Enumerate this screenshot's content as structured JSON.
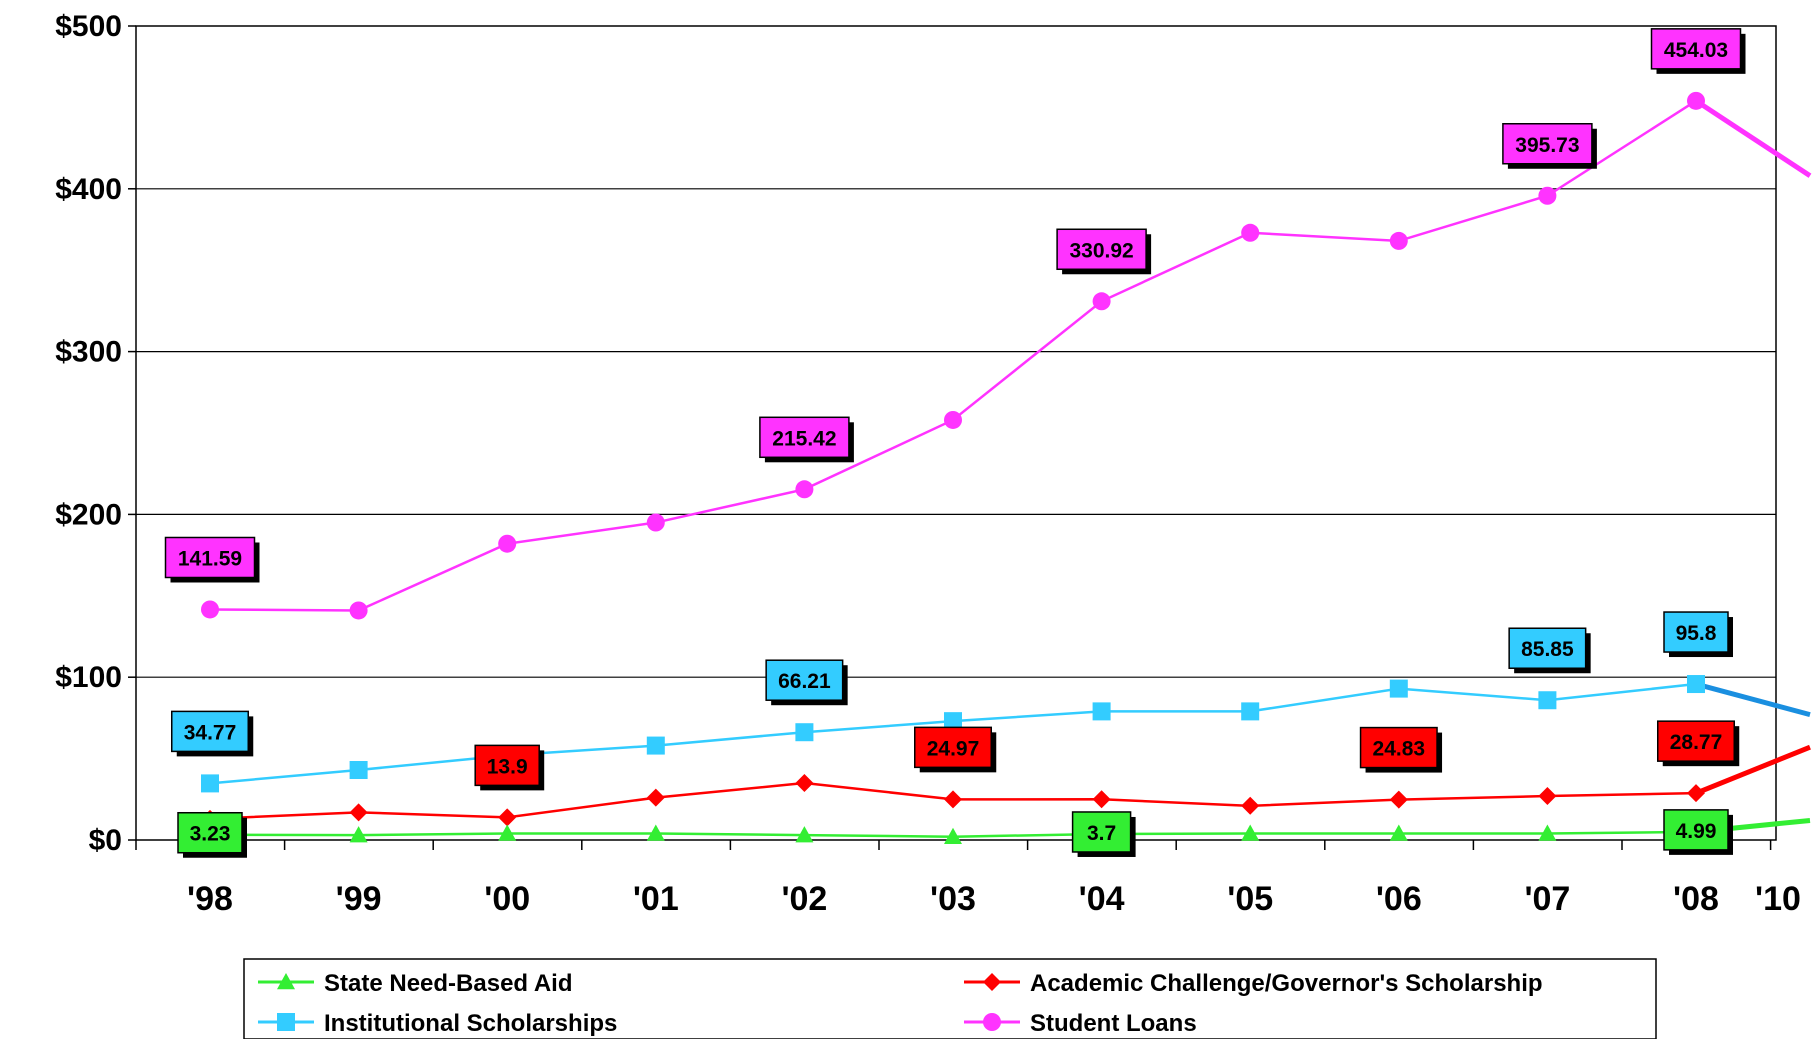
{
  "chart_data": {
    "type": "line",
    "title": "",
    "xlabel": "",
    "ylabel": "",
    "categories": [
      "'98",
      "'99",
      "'00",
      "'01",
      "'02",
      "'03",
      "'04",
      "'05",
      "'06",
      "'07",
      "'08"
    ],
    "trailing_tick": "'10",
    "ylim": [
      0,
      500
    ],
    "yticks": [
      {
        "value": 0,
        "label": "$0"
      },
      {
        "value": 100,
        "label": "$100"
      },
      {
        "value": 200,
        "label": "$200"
      },
      {
        "value": 300,
        "label": "$300"
      },
      {
        "value": 400,
        "label": "$400"
      },
      {
        "value": 500,
        "label": "$500"
      }
    ],
    "grid": true,
    "legend_position": "bottom",
    "series": [
      {
        "key": "student-loans",
        "name": "Student Loans",
        "color": "#ff33ff",
        "marker": "circle",
        "values": [
          141.59,
          141,
          182,
          195,
          215.42,
          258,
          330.92,
          373,
          368,
          395.73,
          454.03
        ],
        "projection": 408,
        "labels": [
          {
            "index": 0,
            "text": "141.59"
          },
          {
            "index": 4,
            "text": "215.42"
          },
          {
            "index": 6,
            "text": "330.92"
          },
          {
            "index": 9,
            "text": "395.73"
          },
          {
            "index": 10,
            "text": "454.03"
          }
        ]
      },
      {
        "key": "institutional-scholarships",
        "name": "Institutional Scholarships",
        "color": "#33ccff",
        "projection_color": "#1a8fe0",
        "marker": "square",
        "values": [
          34.77,
          43,
          52,
          58,
          66.21,
          73,
          79,
          79,
          93,
          85.85,
          95.8
        ],
        "projection": 77,
        "labels": [
          {
            "index": 0,
            "text": "34.77"
          },
          {
            "index": 4,
            "text": "66.21"
          },
          {
            "index": 9,
            "text": "85.85"
          },
          {
            "index": 10,
            "text": "95.8"
          }
        ]
      },
      {
        "key": "academic-challenge",
        "name": "Academic Challenge/Governor's Scholarship",
        "color": "#ff0000",
        "marker": "diamond",
        "values": [
          13,
          17,
          13.9,
          26,
          35,
          24.97,
          25,
          21,
          24.83,
          27,
          28.77
        ],
        "projection": 57,
        "labels": [
          {
            "index": 2,
            "text": "13.9"
          },
          {
            "index": 5,
            "text": "24.97"
          },
          {
            "index": 8,
            "text": "24.83"
          },
          {
            "index": 10,
            "text": "28.77"
          }
        ]
      },
      {
        "key": "state-need-based",
        "name": "State Need-Based Aid",
        "color": "#33ee33",
        "marker": "triangle",
        "values": [
          3.23,
          3,
          4,
          4,
          3,
          2,
          3.7,
          4,
          4,
          4,
          4.99
        ],
        "projection": 12,
        "labels": [
          {
            "index": 0,
            "text": "3.23"
          },
          {
            "index": 6,
            "text": "3.7"
          },
          {
            "index": 10,
            "text": "4.99"
          }
        ]
      }
    ]
  }
}
